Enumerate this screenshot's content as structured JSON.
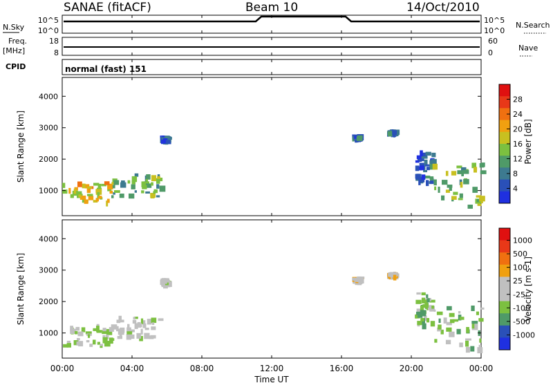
{
  "header": {
    "station": "SANAE (fitACF)",
    "beam": "Beam 10",
    "date": "14/Oct/2010"
  },
  "status_panels": {
    "nsky_label": "N.Sky",
    "nsky_ticks": [
      "10^5",
      "10^0"
    ],
    "nsearch_label": "N.Search",
    "nsearch_ticks": [
      "10^5",
      "10^0"
    ],
    "freq_label": "Freq.",
    "freq_unit": "[MHz]",
    "freq_ticks": [
      "18",
      "8"
    ],
    "nave_label": "Nave",
    "nave_ticks": [
      "60",
      "0"
    ],
    "cpid_label": "CPID",
    "cpid_value": "normal (fast) 151"
  },
  "colors": {
    "power": [
      "#1f30e0",
      "#2a50b8",
      "#3d7a90",
      "#4f9a68",
      "#7cc040",
      "#c8c020",
      "#f0a010",
      "#f07010",
      "#e83818",
      "#e01010"
    ],
    "velocity": [
      "#e01010",
      "#e83818",
      "#f07010",
      "#f0a010",
      "#c0c0c0",
      "#c0c0c0",
      "#7cc040",
      "#4f9a68",
      "#2a50b8",
      "#1f30e0"
    ]
  },
  "chart_data": [
    {
      "type": "heatmap",
      "name": "power-panel",
      "ylabel": "Slant Range [km]",
      "yticks": [
        "1000",
        "2000",
        "3000",
        "4000"
      ],
      "ylim": [
        200,
        4600
      ],
      "xlim": [
        0,
        24
      ],
      "colorbar_label": "Power [dB]",
      "colorbar_ticks": [
        "4",
        "8",
        "12",
        "16",
        "20",
        "24",
        "28"
      ],
      "crange": [
        0,
        32
      ],
      "patches": [
        {
          "t": [
            0.0,
            2.8
          ],
          "r": [
            600,
            1300
          ],
          "v": 18
        },
        {
          "t": [
            2.8,
            5.6
          ],
          "r": [
            850,
            1550
          ],
          "v": 12
        },
        {
          "t": [
            5.6,
            6.0
          ],
          "r": [
            2600,
            2750
          ],
          "v": 6
        },
        {
          "t": [
            16.6,
            17.0
          ],
          "r": [
            2700,
            2800
          ],
          "v": 6
        },
        {
          "t": [
            18.6,
            19.0
          ],
          "r": [
            2850,
            2950
          ],
          "v": 6
        },
        {
          "t": [
            20.2,
            21.2
          ],
          "r": [
            1300,
            2300
          ],
          "v": 6
        },
        {
          "t": [
            21.2,
            24.0
          ],
          "r": [
            550,
            1900
          ],
          "v": 14
        }
      ]
    },
    {
      "type": "heatmap",
      "name": "velocity-panel",
      "ylabel": "Slant Range [km]",
      "yticks": [
        "1000",
        "2000",
        "3000",
        "4000"
      ],
      "ylim": [
        200,
        4600
      ],
      "xlim": [
        0,
        24
      ],
      "colorbar_label": "Velocity [m s-1]",
      "colorbar_ticks": [
        "1000",
        "500",
        "100",
        "25",
        "-25",
        "-100",
        "-500",
        "-1000"
      ],
      "crange": [
        -1000,
        1000
      ],
      "patches": [
        {
          "t": [
            0.0,
            2.8
          ],
          "r": [
            600,
            1300
          ],
          "v": -200
        },
        {
          "t": [
            2.8,
            5.6
          ],
          "r": [
            850,
            1550
          ],
          "v": -150
        },
        {
          "t": [
            5.6,
            6.0
          ],
          "r": [
            2600,
            2750
          ],
          "v": -50
        },
        {
          "t": [
            16.6,
            17.0
          ],
          "r": [
            2700,
            2800
          ],
          "v": 80
        },
        {
          "t": [
            18.6,
            19.0
          ],
          "r": [
            2850,
            2950
          ],
          "v": 150
        },
        {
          "t": [
            20.2,
            21.2
          ],
          "r": [
            1300,
            2300
          ],
          "v": -300
        },
        {
          "t": [
            21.2,
            24.0
          ],
          "r": [
            550,
            1900
          ],
          "v": -250
        }
      ]
    }
  ],
  "xaxis": {
    "label": "Time UT",
    "ticks": [
      "00:00",
      "04:00",
      "08:00",
      "12:00",
      "16:00",
      "20:00",
      "00:00"
    ]
  }
}
